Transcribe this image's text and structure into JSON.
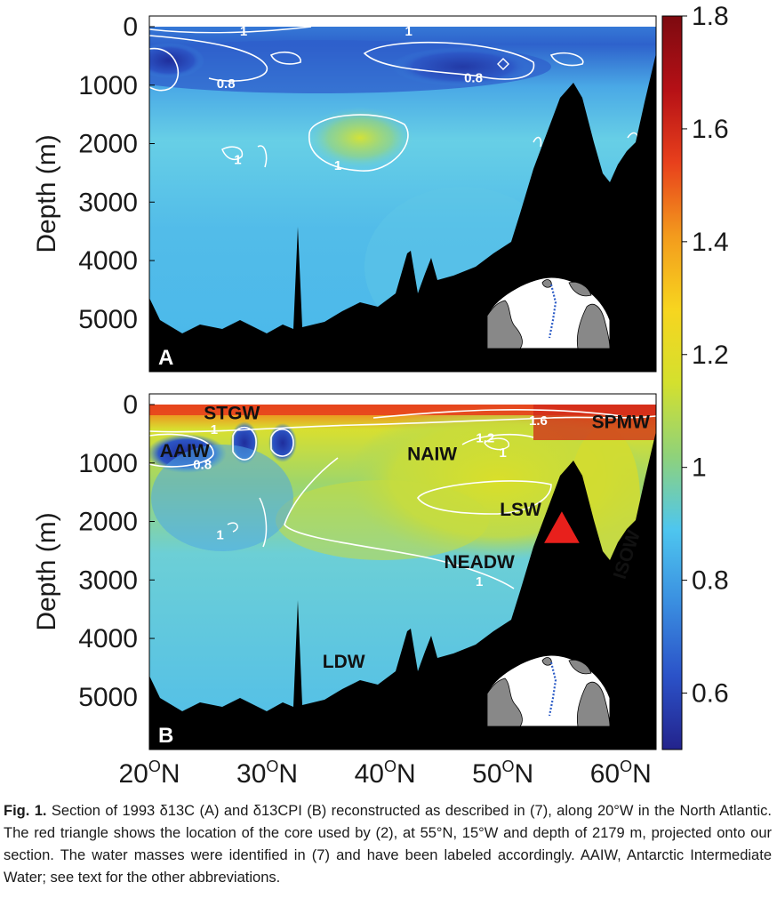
{
  "chart_data": [
    {
      "panel": "A",
      "type": "heatmap",
      "ylabel": "Depth (m)",
      "xlim": [
        20,
        63
      ],
      "ylim": [
        5900,
        0
      ],
      "y_ticks": [
        0,
        1000,
        2000,
        3000,
        4000,
        5000
      ],
      "contour_labels": [
        {
          "text": "0.8",
          "x": 26.5,
          "y": 1050
        },
        {
          "text": "0.8",
          "x": 47.5,
          "y": 950
        },
        {
          "text": "1",
          "x": 27.5,
          "y": 2350
        },
        {
          "text": "1",
          "x": 36,
          "y": 2450
        },
        {
          "text": "1",
          "x": 28,
          "y": 150
        },
        {
          "text": "1",
          "x": 42,
          "y": 150
        }
      ],
      "inset": "map of the North Atlantic with section line along 20°W"
    },
    {
      "panel": "B",
      "type": "heatmap",
      "ylabel": "Depth (m)",
      "xlim": [
        20,
        63
      ],
      "ylim": [
        5900,
        0
      ],
      "y_ticks": [
        0,
        1000,
        2000,
        3000,
        4000,
        5000
      ],
      "contour_labels": [
        {
          "text": "1",
          "x": 25.5,
          "y": 500
        },
        {
          "text": "0.8",
          "x": 24.5,
          "y": 1100
        },
        {
          "text": "1.6",
          "x": 53,
          "y": 350
        },
        {
          "text": "1.2",
          "x": 48.5,
          "y": 650
        },
        {
          "text": "1",
          "x": 50,
          "y": 900
        },
        {
          "text": "1",
          "x": 26,
          "y": 2300
        },
        {
          "text": "1",
          "x": 48,
          "y": 3100
        }
      ],
      "water_masses": [
        {
          "label": "STGW",
          "x": 27,
          "y": 250
        },
        {
          "label": "AAIW",
          "x": 23,
          "y": 900
        },
        {
          "label": "NAIW",
          "x": 44,
          "y": 950
        },
        {
          "label": "SPMW",
          "x": 60,
          "y": 400
        },
        {
          "label": "LSW",
          "x": 51.5,
          "y": 1900
        },
        {
          "label": "NEADW",
          "x": 48,
          "y": 2800
        },
        {
          "label": "LDW",
          "x": 36.5,
          "y": 4500
        },
        {
          "label": "ISOW",
          "x": 61,
          "y": 2600
        }
      ],
      "core_marker": {
        "lat": 55,
        "lon": "15°W",
        "depth": 2179
      },
      "inset": "map of the North Atlantic with section line along 20°W"
    }
  ],
  "x_ticks": [
    "20",
    "30",
    "40",
    "50",
    "60"
  ],
  "x_tick_unit": "N",
  "colorbar": {
    "min": 0.5,
    "max": 1.8,
    "ticks": [
      "0.6",
      "0.8",
      "1",
      "1.2",
      "1.4",
      "1.6",
      "1.8"
    ],
    "colors": [
      "#23238c",
      "#2b52c8",
      "#3a8ee0",
      "#4ec6ef",
      "#8fd27a",
      "#d4e02e",
      "#f7d51f",
      "#f39b1d",
      "#e8401c",
      "#b51016",
      "#7d0a10"
    ]
  },
  "caption": {
    "lead": "Fig. 1.",
    "text": "Section of 1993 δ13C (A) and δ13CPI (B) reconstructed as described in (7), along 20°W in the North Atlantic. The red triangle shows the location of the core used by (2), at 55°N, 15°W and depth of 2179 m, projected onto our section. The water masses were identified in (7) and have been labeled accordingly. AAIW, Antarctic Intermediate Water; see text for the other abbreviations."
  }
}
